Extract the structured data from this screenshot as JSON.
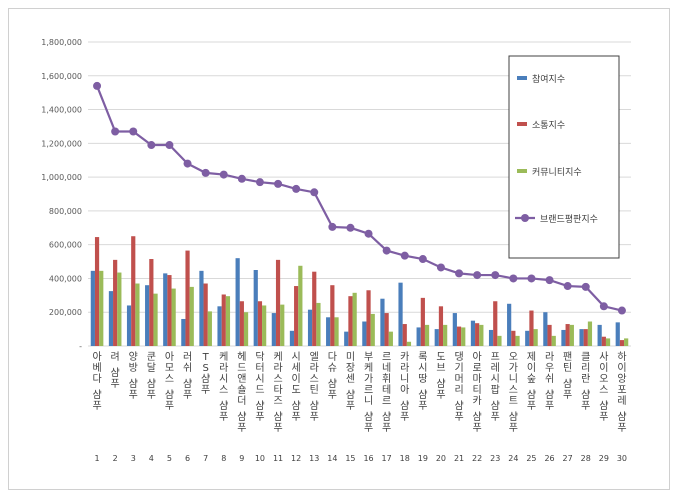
{
  "chart_data": {
    "type": "bar",
    "categories": [
      "아베다 샴푸",
      "려 샴푸",
      "양방 샴푸",
      "쿤달 샴푸",
      "아모스 샴푸",
      "러쉬 샴푸",
      "TS샴푸",
      "케라시스 샴푸",
      "헤드앤숄더 샴푸",
      "닥터시드 샴푸",
      "케라스타즈 샴푸",
      "시세이도 샴푸",
      "엘라스틴 샴푸",
      "다슈 샴푸",
      "미장센 샴푸",
      "부케가르니 샴푸",
      "르네휘테르 샴푸",
      "카라니아 샴푸",
      "록시땅 샴푸",
      "도브 샴푸",
      "댕기머리 샴푸",
      "아로마티카 샴푸",
      "프레시팝 샴푸",
      "오가니스트 샴푸",
      "제이숲 샴푸",
      "라우쉬 샴푸",
      "팬틴 샴푸",
      "클리란 샴푸",
      "사이오스 샴푸",
      "하이앙포레 샴푸"
    ],
    "ranks": [
      "1",
      "2",
      "3",
      "4",
      "5",
      "6",
      "7",
      "8",
      "9",
      "10",
      "11",
      "12",
      "13",
      "14",
      "15",
      "16",
      "17",
      "18",
      "19",
      "20",
      "21",
      "22",
      "23",
      "24",
      "25",
      "26",
      "27",
      "28",
      "29",
      "30"
    ],
    "series": [
      {
        "name": "참여지수",
        "kind": "bar",
        "color": "#4a7ebb",
        "values": [
          445000,
          325000,
          240000,
          360000,
          430000,
          160000,
          445000,
          235000,
          520000,
          450000,
          195000,
          90000,
          215000,
          170000,
          85000,
          145000,
          280000,
          375000,
          110000,
          100000,
          195000,
          150000,
          95000,
          250000,
          90000,
          200000,
          95000,
          100000,
          125000,
          140000
        ]
      },
      {
        "name": "소통지수",
        "kind": "bar",
        "color": "#c0504d",
        "values": [
          645000,
          510000,
          650000,
          515000,
          420000,
          565000,
          370000,
          305000,
          265000,
          265000,
          510000,
          355000,
          440000,
          360000,
          295000,
          330000,
          195000,
          130000,
          285000,
          235000,
          115000,
          135000,
          265000,
          90000,
          210000,
          125000,
          130000,
          100000,
          55000,
          35000
        ]
      },
      {
        "name": "커뮤니티지수",
        "kind": "bar",
        "color": "#9bbb59",
        "values": [
          445000,
          435000,
          370000,
          310000,
          340000,
          350000,
          205000,
          295000,
          200000,
          240000,
          245000,
          475000,
          255000,
          170000,
          315000,
          190000,
          85000,
          25000,
          125000,
          125000,
          110000,
          125000,
          60000,
          60000,
          100000,
          60000,
          125000,
          145000,
          45000,
          45000
        ]
      },
      {
        "name": "브랜드평판지수",
        "kind": "line",
        "color": "#7e5ea3",
        "values": [
          1540000,
          1270000,
          1270000,
          1190000,
          1190000,
          1080000,
          1025000,
          1015000,
          990000,
          970000,
          960000,
          930000,
          910000,
          705000,
          700000,
          665000,
          565000,
          535000,
          515000,
          465000,
          430000,
          420000,
          420000,
          400000,
          400000,
          390000,
          355000,
          350000,
          235000,
          210000
        ]
      }
    ],
    "y_ticks": [
      "-",
      "200,000",
      "400,000",
      "600,000",
      "800,000",
      "1,000,000",
      "1,200,000",
      "1,400,000",
      "1,600,000",
      "1,800,000"
    ],
    "ylim": [
      0,
      1800000
    ],
    "grid": true,
    "legend_position": "right"
  }
}
